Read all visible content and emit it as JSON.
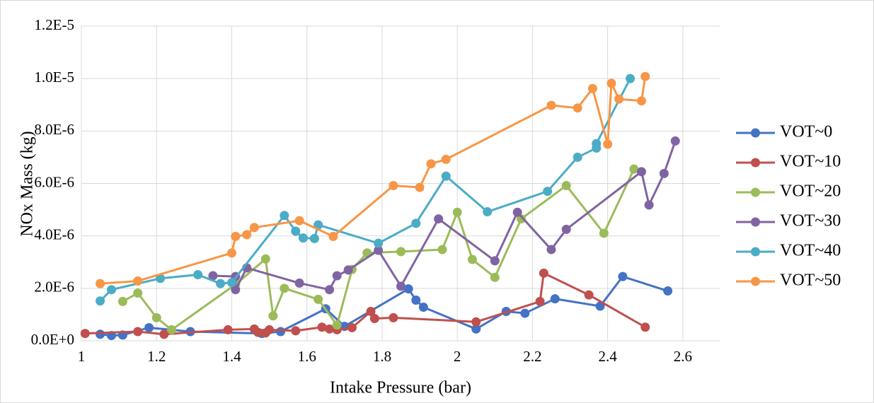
{
  "chart_data": {
    "type": "line",
    "x_label": "Intake Pressure (bar)",
    "y_label": "NOx Mass (kg)",
    "xlim": [
      1,
      2.7
    ],
    "xticks": [
      1,
      1.2,
      1.4,
      1.6,
      1.8,
      2,
      2.2,
      2.4,
      2.6
    ],
    "ylim": [
      0,
      1.2e-05
    ],
    "yticks": [
      {
        "value": 0,
        "label": "0.0E+0"
      },
      {
        "value": 2e-06,
        "label": "2.0E-6"
      },
      {
        "value": 4e-06,
        "label": "4.0E-6"
      },
      {
        "value": 6e-06,
        "label": "6.0E-6"
      },
      {
        "value": 8e-06,
        "label": "8.0E-6"
      },
      {
        "value": 1e-05,
        "label": "1.0E-5"
      },
      {
        "value": 1.2e-05,
        "label": "1.2E-5"
      }
    ],
    "grid": true,
    "legend": "right",
    "series": [
      {
        "name": "VOT~0",
        "color": "#4472c4",
        "x": [
          1.05,
          1.08,
          1.11,
          1.18,
          1.29,
          1.48,
          1.53,
          1.65,
          1.7,
          1.87,
          1.89,
          1.91,
          2.05,
          2.13,
          2.18,
          2.26,
          2.38,
          2.44,
          2.56
        ],
        "values": [
          2.5e-07,
          2e-07,
          2.2e-07,
          5e-07,
          3.5e-07,
          2.8e-07,
          3.5e-07,
          1.22e-06,
          5.5e-07,
          1.98e-06,
          1.55e-06,
          1.28e-06,
          4.5e-07,
          1.12e-06,
          1.05e-06,
          1.6e-06,
          1.32e-06,
          2.45e-06,
          1.9e-06
        ]
      },
      {
        "name": "VOT~10",
        "color": "#c0504d",
        "x": [
          1.01,
          1.15,
          1.22,
          1.39,
          1.46,
          1.47,
          1.49,
          1.5,
          1.57,
          1.64,
          1.66,
          1.68,
          1.72,
          1.77,
          1.78,
          1.83,
          2.05,
          2.22,
          2.23,
          2.35,
          2.5
        ],
        "values": [
          2.8e-07,
          3.5e-07,
          2.5e-07,
          4.2e-07,
          4.5e-07,
          3.2e-07,
          3e-07,
          4.2e-07,
          3.8e-07,
          5.2e-07,
          4.5e-07,
          4.2e-07,
          5e-07,
          1.12e-06,
          8.5e-07,
          8.8e-07,
          7.2e-07,
          1.5e-06,
          2.58e-06,
          1.75e-06,
          5.2e-07
        ]
      },
      {
        "name": "VOT~20",
        "color": "#9bbb59",
        "x": [
          1.11,
          1.15,
          1.2,
          1.24,
          1.41,
          1.49,
          1.51,
          1.54,
          1.63,
          1.68,
          1.72,
          1.76,
          1.85,
          1.96,
          2.0,
          2.04,
          2.1,
          2.17,
          2.29,
          2.39,
          2.47
        ],
        "values": [
          1.5e-06,
          1.82e-06,
          8.8e-07,
          4.2e-07,
          2.15e-06,
          3.12e-06,
          9.5e-07,
          2e-06,
          1.58e-06,
          6e-07,
          2.72e-06,
          3.35e-06,
          3.4e-06,
          3.48e-06,
          4.9e-06,
          3.1e-06,
          2.42e-06,
          4.65e-06,
          5.92e-06,
          4.1e-06,
          6.55e-06
        ]
      },
      {
        "name": "VOT~30",
        "color": "#8064a2",
        "x": [
          1.35,
          1.41,
          1.41,
          1.44,
          1.58,
          1.66,
          1.68,
          1.71,
          1.79,
          1.85,
          1.95,
          2.1,
          2.16,
          2.25,
          2.29,
          2.49,
          2.51,
          2.55,
          2.58
        ],
        "values": [
          2.48e-06,
          2.45e-06,
          1.95e-06,
          2.78e-06,
          2.2e-06,
          1.95e-06,
          2.48e-06,
          2.7e-06,
          3.45e-06,
          2.08e-06,
          4.65e-06,
          3.05e-06,
          4.9e-06,
          3.48e-06,
          4.25e-06,
          6.45e-06,
          5.18e-06,
          6.38e-06,
          7.62e-06
        ]
      },
      {
        "name": "VOT~40",
        "color": "#4bacc6",
        "x": [
          1.05,
          1.08,
          1.21,
          1.31,
          1.37,
          1.4,
          1.54,
          1.57,
          1.59,
          1.62,
          1.63,
          1.79,
          1.89,
          1.97,
          2.08,
          2.24,
          2.32,
          2.37,
          2.37,
          2.46
        ],
        "values": [
          1.52e-06,
          1.95e-06,
          2.38e-06,
          2.52e-06,
          2.18e-06,
          2.22e-06,
          4.78e-06,
          4.18e-06,
          3.92e-06,
          3.9e-06,
          4.42e-06,
          3.72e-06,
          4.48e-06,
          6.28e-06,
          4.92e-06,
          5.7e-06,
          7e-06,
          7.35e-06,
          7.52e-06,
          1e-05
        ]
      },
      {
        "name": "VOT~50",
        "color": "#f79646",
        "x": [
          1.05,
          1.15,
          1.4,
          1.41,
          1.44,
          1.46,
          1.58,
          1.67,
          1.83,
          1.9,
          1.93,
          1.97,
          2.25,
          2.32,
          2.36,
          2.4,
          2.41,
          2.43,
          2.49,
          2.5
        ],
        "values": [
          2.18e-06,
          2.28e-06,
          3.35e-06,
          3.98e-06,
          4.05e-06,
          4.32e-06,
          4.58e-06,
          3.98e-06,
          5.92e-06,
          5.85e-06,
          6.75e-06,
          6.92e-06,
          8.98e-06,
          8.88e-06,
          9.62e-06,
          7.5e-06,
          9.82e-06,
          9.22e-06,
          9.15e-06,
          1.008e-05
        ]
      }
    ]
  }
}
